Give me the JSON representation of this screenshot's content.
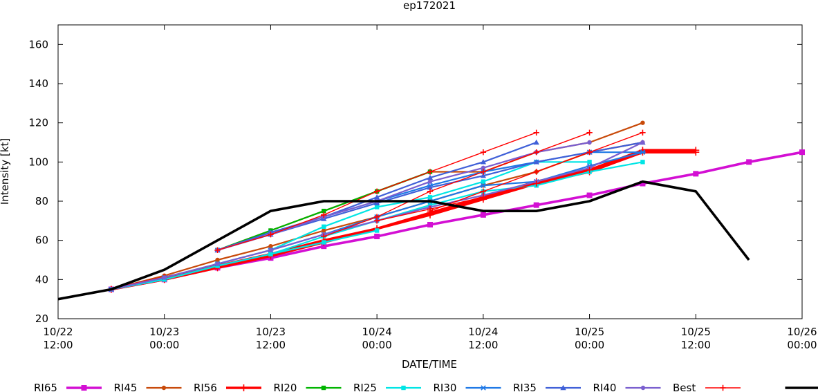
{
  "chart_data": {
    "type": "line",
    "title": "ep172021",
    "xlabel": "DATE/TIME",
    "ylabel": "Intensity [kt]",
    "ylim": [
      20,
      170
    ],
    "yticks": [
      20,
      40,
      60,
      80,
      100,
      120,
      140,
      160
    ],
    "xlim": [
      "2021-10-22 12:00",
      "2021-10-26 00:00"
    ],
    "xticks": [
      {
        "x": "2021-10-22 12:00",
        "label": [
          "10/22",
          "12:00"
        ]
      },
      {
        "x": "2021-10-23 00:00",
        "label": [
          "10/23",
          "00:00"
        ]
      },
      {
        "x": "2021-10-23 12:00",
        "label": [
          "10/23",
          "12:00"
        ]
      },
      {
        "x": "2021-10-24 00:00",
        "label": [
          "10/24",
          "00:00"
        ]
      },
      {
        "x": "2021-10-24 12:00",
        "label": [
          "10/24",
          "12:00"
        ]
      },
      {
        "x": "2021-10-25 00:00",
        "label": [
          "10/25",
          "00:00"
        ]
      },
      {
        "x": "2021-10-25 12:00",
        "label": [
          "10/25",
          "12:00"
        ]
      },
      {
        "x": "2021-10-26 00:00",
        "label": [
          "10/26",
          "00:00"
        ]
      }
    ],
    "grid": false,
    "legend_position": "bottom",
    "series": [
      {
        "name": "RI65",
        "color": "#d30fd3",
        "marker": "square",
        "width": 3.6,
        "lines": [
          {
            "x": [
              "2021-10-22 18:00",
              "2021-10-23 00:00",
              "2021-10-23 06:00",
              "2021-10-23 12:00",
              "2021-10-23 18:00",
              "2021-10-24 00:00",
              "2021-10-24 06:00",
              "2021-10-24 12:00",
              "2021-10-24 18:00",
              "2021-10-25 00:00",
              "2021-10-25 06:00",
              "2021-10-25 12:00",
              "2021-10-25 18:00",
              "2021-10-26 00:00"
            ],
            "y": [
              35,
              40,
              46,
              51,
              57,
              62,
              68,
              73,
              78,
              83,
              89,
              94,
              100,
              105
            ]
          }
        ]
      },
      {
        "name": "RI45",
        "color": "#c84a0a",
        "marker": "circle",
        "width": 2.2,
        "lines": [
          {
            "x": [
              "2021-10-23 06:00",
              "2021-10-23 12:00",
              "2021-10-23 18:00",
              "2021-10-24 00:00",
              "2021-10-24 06:00",
              "2021-10-24 12:00",
              "2021-10-24 18:00",
              "2021-10-25 00:00",
              "2021-10-25 06:00"
            ],
            "y": [
              55,
              65,
              75,
              85,
              95,
              95,
              105,
              110,
              120
            ]
          },
          {
            "x": [
              "2021-10-22 18:00",
              "2021-10-23 00:00",
              "2021-10-23 06:00",
              "2021-10-23 12:00",
              "2021-10-23 18:00",
              "2021-10-24 00:00",
              "2021-10-24 06:00",
              "2021-10-24 12:00",
              "2021-10-24 18:00",
              "2021-10-25 00:00",
              "2021-10-25 06:00"
            ],
            "y": [
              35,
              42,
              50,
              57,
              65,
              72,
              80,
              88,
              95,
              105,
              110
            ]
          }
        ]
      },
      {
        "name": "RI56",
        "color": "#ff0000",
        "marker": "plus",
        "width": 3.6,
        "lines": [
          {
            "x": [
              "2021-10-22 18:00",
              "2021-10-23 00:00",
              "2021-10-23 06:00",
              "2021-10-23 12:00",
              "2021-10-23 18:00",
              "2021-10-24 00:00",
              "2021-10-24 06:00",
              "2021-10-24 12:00",
              "2021-10-24 18:00",
              "2021-10-25 00:00",
              "2021-10-25 06:00",
              "2021-10-25 12:00"
            ],
            "y": [
              35,
              41,
              47,
              53,
              60,
              66,
              74,
              82,
              90,
              96,
              106,
              106
            ]
          },
          {
            "x": [
              "2021-10-22 18:00",
              "2021-10-23 00:00",
              "2021-10-23 06:00",
              "2021-10-23 12:00",
              "2021-10-23 18:00",
              "2021-10-24 00:00",
              "2021-10-24 06:00",
              "2021-10-24 12:00",
              "2021-10-24 18:00",
              "2021-10-25 00:00",
              "2021-10-25 06:00",
              "2021-10-25 12:00"
            ],
            "y": [
              35,
              40,
              46,
              52,
              59,
              66,
              73,
              81,
              89,
              95,
              105,
              105
            ]
          }
        ]
      },
      {
        "name": "RI20",
        "color": "#00b400",
        "marker": "square",
        "width": 2.2,
        "lines": [
          {
            "x": [
              "2021-10-23 06:00",
              "2021-10-23 12:00",
              "2021-10-23 18:00",
              "2021-10-24 00:00",
              "2021-10-24 06:00"
            ],
            "y": [
              55,
              65,
              75,
              85,
              95
            ]
          }
        ]
      },
      {
        "name": "RI25",
        "color": "#00e5e5",
        "marker": "square",
        "width": 2.2,
        "lines": [
          {
            "x": [
              "2021-10-22 18:00",
              "2021-10-23 00:00",
              "2021-10-23 06:00",
              "2021-10-23 12:00",
              "2021-10-23 18:00",
              "2021-10-24 00:00"
            ],
            "y": [
              35,
              40,
              47,
              53,
              59,
              65
            ]
          },
          {
            "x": [
              "2021-10-22 18:00",
              "2021-10-23 00:00",
              "2021-10-23 06:00",
              "2021-10-23 12:00",
              "2021-10-23 18:00",
              "2021-10-24 00:00",
              "2021-10-24 06:00",
              "2021-10-24 12:00",
              "2021-10-24 18:00",
              "2021-10-25 00:00",
              "2021-10-25 06:00"
            ],
            "y": [
              35,
              40,
              47,
              53,
              62,
              70,
              78,
              85,
              88,
              95,
              100
            ]
          },
          {
            "x": [
              "2021-10-23 06:00",
              "2021-10-23 12:00",
              "2021-10-23 18:00",
              "2021-10-24 00:00",
              "2021-10-24 06:00",
              "2021-10-24 12:00",
              "2021-10-24 18:00",
              "2021-10-25 00:00"
            ],
            "y": [
              48,
              55,
              67,
              77,
              82,
              90,
              100,
              100
            ]
          }
        ]
      },
      {
        "name": "RI30",
        "color": "#1e78e6",
        "marker": "star",
        "width": 2.2,
        "lines": [
          {
            "x": [
              "2021-10-23 06:00",
              "2021-10-23 12:00",
              "2021-10-23 18:00",
              "2021-10-24 00:00",
              "2021-10-24 06:00",
              "2021-10-24 12:00",
              "2021-10-24 18:00",
              "2021-10-25 00:00",
              "2021-10-25 06:00"
            ],
            "y": [
              55,
              64,
              72,
              80,
              88,
              95,
              100,
              105,
              105
            ]
          },
          {
            "x": [
              "2021-10-22 18:00",
              "2021-10-23 00:00",
              "2021-10-23 06:00",
              "2021-10-23 12:00",
              "2021-10-23 18:00",
              "2021-10-24 00:00",
              "2021-10-24 06:00",
              "2021-10-24 12:00",
              "2021-10-24 18:00",
              "2021-10-25 00:00",
              "2021-10-25 06:00"
            ],
            "y": [
              35,
              41,
              48,
              55,
              63,
              72,
              80,
              88,
              90,
              98,
              105
            ]
          }
        ]
      },
      {
        "name": "RI35",
        "color": "#4060d8",
        "marker": "triangle",
        "width": 2.2,
        "lines": [
          {
            "x": [
              "2021-10-23 06:00",
              "2021-10-23 12:00",
              "2021-10-23 18:00",
              "2021-10-24 00:00",
              "2021-10-24 06:00",
              "2021-10-24 12:00",
              "2021-10-24 18:00"
            ],
            "y": [
              55,
              64,
              72,
              82,
              92,
              100,
              110
            ]
          },
          {
            "x": [
              "2021-10-23 06:00",
              "2021-10-23 12:00",
              "2021-10-23 18:00",
              "2021-10-24 00:00",
              "2021-10-24 06:00",
              "2021-10-24 12:00",
              "2021-10-24 18:00",
              "2021-10-25 00:00",
              "2021-10-25 06:00"
            ],
            "y": [
              55,
              63,
              71,
              79,
              87,
              93,
              100,
              105,
              110
            ]
          }
        ]
      },
      {
        "name": "RI40",
        "color": "#7a5fcf",
        "marker": "circle",
        "width": 2.2,
        "lines": [
          {
            "x": [
              "2021-10-23 06:00",
              "2021-10-23 12:00",
              "2021-10-23 18:00",
              "2021-10-24 00:00",
              "2021-10-24 06:00",
              "2021-10-24 12:00",
              "2021-10-24 18:00",
              "2021-10-25 00:00"
            ],
            "y": [
              55,
              63,
              72,
              80,
              90,
              97,
              105,
              110
            ]
          },
          {
            "x": [
              "2021-10-22 18:00",
              "2021-10-23 00:00",
              "2021-10-23 06:00",
              "2021-10-23 12:00",
              "2021-10-23 18:00",
              "2021-10-24 00:00",
              "2021-10-24 06:00",
              "2021-10-24 12:00",
              "2021-10-24 18:00",
              "2021-10-25 00:00",
              "2021-10-25 06:00"
            ],
            "y": [
              35,
              41,
              48,
              55,
              63,
              70,
              77,
              83,
              90,
              97,
              110
            ]
          }
        ]
      },
      {
        "name": "Best",
        "color": "#ff0000",
        "marker": "plus",
        "width": 1.4,
        "lines": [
          {
            "x": [
              "2021-10-23 06:00",
              "2021-10-23 12:00",
              "2021-10-23 18:00",
              "2021-10-24 00:00",
              "2021-10-24 06:00",
              "2021-10-24 12:00",
              "2021-10-24 18:00"
            ],
            "y": [
              55,
              63,
              73,
              85,
              95,
              105,
              115
            ]
          },
          {
            "x": [
              "2021-10-23 18:00",
              "2021-10-24 00:00",
              "2021-10-24 06:00",
              "2021-10-24 12:00",
              "2021-10-24 18:00",
              "2021-10-25 00:00"
            ],
            "y": [
              62,
              72,
              85,
              95,
              105,
              115
            ]
          },
          {
            "x": [
              "2021-10-24 06:00",
              "2021-10-24 12:00",
              "2021-10-24 18:00",
              "2021-10-25 00:00",
              "2021-10-25 06:00"
            ],
            "y": [
              75,
              85,
              95,
              105,
              115
            ]
          },
          {
            "x": [
              "2021-10-24 00:00",
              "2021-10-24 06:00",
              "2021-10-24 12:00",
              "2021-10-24 18:00",
              "2021-10-25 00:00"
            ],
            "y": [
              70,
              76,
              82,
              89,
              96
            ]
          }
        ]
      },
      {
        "name": "",
        "color": "#000000",
        "marker": "none",
        "width": 3.6,
        "lines": [
          {
            "x": [
              "2021-10-22 12:00",
              "2021-10-22 18:00",
              "2021-10-23 00:00",
              "2021-10-23 06:00",
              "2021-10-23 12:00",
              "2021-10-23 18:00",
              "2021-10-24 00:00",
              "2021-10-24 06:00",
              "2021-10-24 12:00",
              "2021-10-24 18:00",
              "2021-10-25 00:00",
              "2021-10-25 06:00",
              "2021-10-25 12:00",
              "2021-10-25 18:00"
            ],
            "y": [
              30,
              35,
              45,
              60,
              75,
              80,
              80,
              80,
              75,
              75,
              80,
              90,
              85,
              50
            ]
          }
        ]
      }
    ]
  }
}
